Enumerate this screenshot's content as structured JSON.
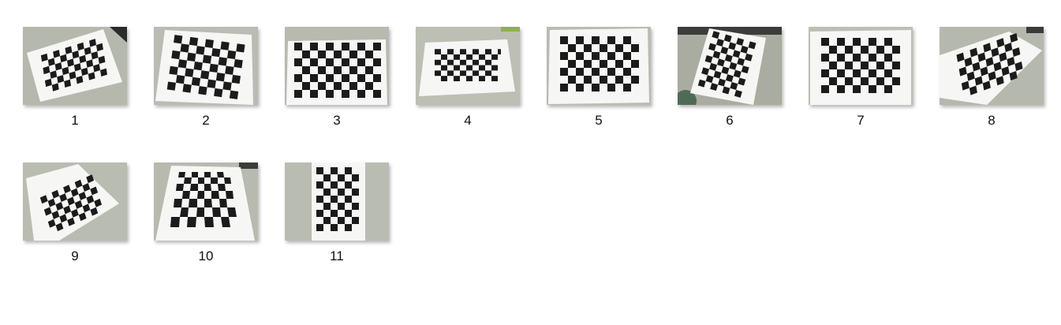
{
  "gallery": {
    "items": [
      {
        "label": "1",
        "icon": "checkerboard-photo-icon"
      },
      {
        "label": "2",
        "icon": "checkerboard-photo-icon"
      },
      {
        "label": "3",
        "icon": "checkerboard-photo-icon"
      },
      {
        "label": "4",
        "icon": "checkerboard-photo-icon"
      },
      {
        "label": "5",
        "icon": "checkerboard-photo-icon"
      },
      {
        "label": "6",
        "icon": "checkerboard-photo-icon"
      },
      {
        "label": "7",
        "icon": "checkerboard-photo-icon"
      },
      {
        "label": "8",
        "icon": "checkerboard-photo-icon"
      },
      {
        "label": "9",
        "icon": "checkerboard-photo-icon"
      },
      {
        "label": "10",
        "icon": "checkerboard-photo-icon"
      },
      {
        "label": "11",
        "icon": "checkerboard-photo-icon"
      }
    ]
  },
  "colors": {
    "background": "#ffffff",
    "desk": "#b9bcb2",
    "paper": "#f6f6f4",
    "square": "#1b1b1b",
    "label": "#111111"
  }
}
